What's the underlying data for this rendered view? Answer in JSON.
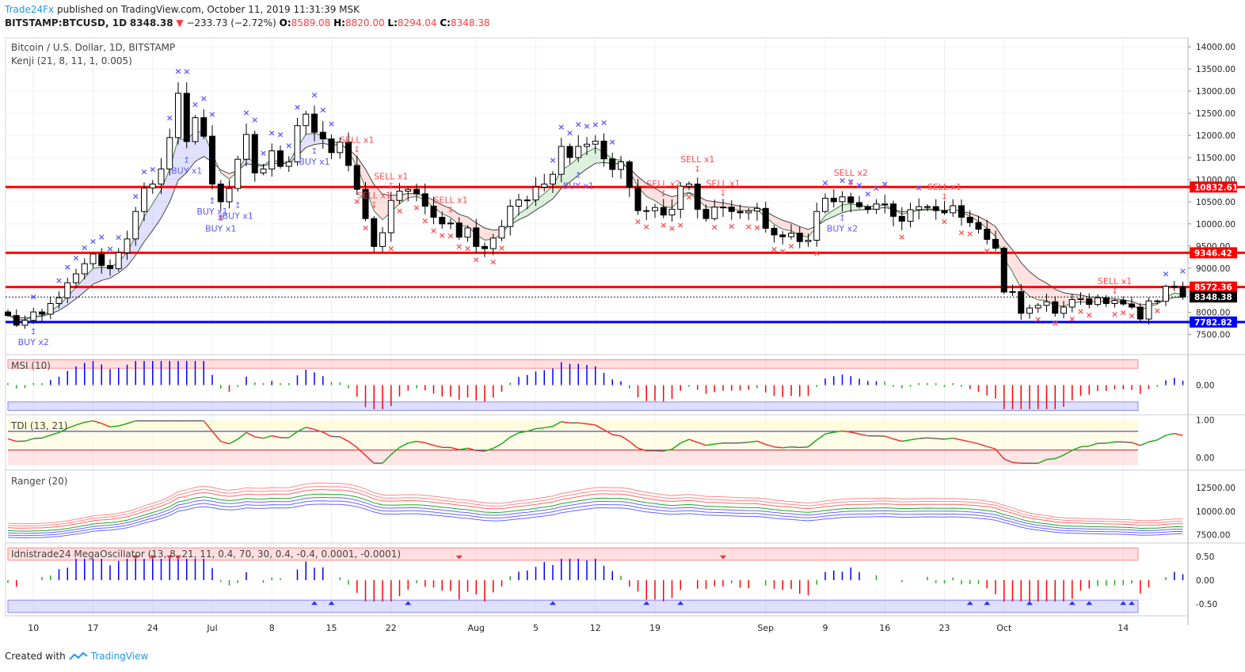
{
  "header": {
    "publisher": "Trade24Fx",
    "published_text": "published on TradingView.com, October 11, 2019 11:31:39 MSK",
    "symbol": "BITSTAMP:BTCUSD, 1D",
    "last": "8348.38",
    "change_arrow": "▼",
    "change": "−233.73 (−2.72%)",
    "o_label": "O:",
    "o_value": "8589.08",
    "h_label": "H:",
    "h_value": "8820.00",
    "l_label": "L:",
    "l_value": "8294.04",
    "c_label": "C:",
    "c_value": "8348.38"
  },
  "footer": {
    "created_with": "Created with",
    "brand": "TradingView"
  },
  "colors": {
    "up": "#ffffff",
    "down": "#000000",
    "red": "#ff0000",
    "blue": "#0000ff",
    "buy": "#5a5aff",
    "sell": "#ff4d4d",
    "grid": "#eef0f4"
  },
  "chart_data": [
    {
      "type": "candlestick",
      "title": "Bitcoin / U.S. Dollar, 1D, BITSTAMP",
      "indicator_label": "Kenji (21, 8, 11, 1, 0.005)",
      "ylim": [
        7100,
        14200
      ],
      "y_ticks": [
        "14000.00",
        "13500.00",
        "13000.00",
        "12500.00",
        "12000.00",
        "11500.00",
        "11000.00",
        "10500.00",
        "10000.00",
        "9500.00",
        "9000.00",
        "8500.00",
        "8000.00",
        "7500.00"
      ],
      "x_ticks": [
        {
          "i": 3,
          "label": "10"
        },
        {
          "i": 10,
          "label": "17"
        },
        {
          "i": 17,
          "label": "24"
        },
        {
          "i": 24,
          "label": "Jul"
        },
        {
          "i": 31,
          "label": "8"
        },
        {
          "i": 38,
          "label": "15"
        },
        {
          "i": 45,
          "label": "22"
        },
        {
          "i": 55,
          "label": "Aug"
        },
        {
          "i": 62,
          "label": "5"
        },
        {
          "i": 69,
          "label": "12"
        },
        {
          "i": 76,
          "label": "19"
        },
        {
          "i": 89,
          "label": "Sep"
        },
        {
          "i": 96,
          "label": "9"
        },
        {
          "i": 103,
          "label": "16"
        },
        {
          "i": 110,
          "label": "23"
        },
        {
          "i": 117,
          "label": "Oct"
        },
        {
          "i": 131,
          "label": "14"
        }
      ],
      "levels": [
        {
          "value": 10832.61,
          "label": "10832.61",
          "color": "red"
        },
        {
          "value": 9346.42,
          "label": "9346.42",
          "color": "red"
        },
        {
          "value": 8572.36,
          "label": "8572.36",
          "color": "red"
        },
        {
          "value": 8348.38,
          "label": "8348.38",
          "color": "black"
        },
        {
          "value": 7782.82,
          "label": "7782.82",
          "color": "blue"
        }
      ],
      "close": [
        7930,
        7710,
        7820,
        8010,
        7960,
        8200,
        8330,
        8670,
        8870,
        9100,
        9320,
        9060,
        8990,
        9350,
        9660,
        10280,
        10810,
        10900,
        11240,
        11950,
        12950,
        11860,
        12400,
        11980,
        10900,
        10500,
        10800,
        11460,
        12020,
        11150,
        11240,
        11650,
        11300,
        11400,
        12220,
        12480,
        12070,
        11920,
        11610,
        11850,
        11320,
        10780,
        10120,
        9490,
        9800,
        10530,
        10740,
        10780,
        10680,
        10400,
        10150,
        10000,
        10020,
        9700,
        9910,
        9490,
        9440,
        9680,
        9940,
        10400,
        10540,
        10540,
        10830,
        10900,
        11120,
        11750,
        11500,
        11750,
        11800,
        11870,
        11470,
        11230,
        11400,
        10830,
        10300,
        10300,
        10370,
        10200,
        10330,
        10850,
        10900,
        10330,
        10120,
        10380,
        10380,
        10280,
        10250,
        10290,
        10350,
        9900,
        9750,
        9710,
        9790,
        9600,
        9630,
        10280,
        10580,
        10500,
        10610,
        10480,
        10390,
        10330,
        10450,
        10450,
        10170,
        10060,
        10320,
        10390,
        10390,
        10300,
        10250,
        10410,
        10150,
        10030,
        9880,
        9650,
        9450,
        8460,
        8470,
        7980,
        8100,
        8160,
        8240,
        7980,
        8120,
        8290,
        8310,
        8180,
        8330,
        8200,
        8270,
        8190,
        8120,
        7850,
        8260,
        8250,
        8590,
        8580,
        8348.38
      ],
      "marker_labels": [
        {
          "i": 3,
          "text": "BUY x2",
          "color": "buy",
          "pos": "below"
        },
        {
          "i": 21,
          "text": "BUY x1",
          "color": "buy",
          "pos": "below"
        },
        {
          "i": 24,
          "text": "BUY x1",
          "color": "buy",
          "pos": "below"
        },
        {
          "i": 25,
          "text": "BUY x1",
          "color": "buy",
          "pos": "below"
        },
        {
          "i": 27,
          "text": "BUY x1",
          "color": "buy",
          "pos": "below"
        },
        {
          "i": 36,
          "text": "BUY x1",
          "color": "buy",
          "pos": "below"
        },
        {
          "i": 41,
          "text": "SELL x1",
          "color": "sell",
          "pos": "above"
        },
        {
          "i": 43,
          "text": "SELL x1",
          "color": "sell",
          "pos": "above"
        },
        {
          "i": 45,
          "text": "SELL x1",
          "color": "sell",
          "pos": "above"
        },
        {
          "i": 52,
          "text": "SELL x1",
          "color": "sell",
          "pos": "above"
        },
        {
          "i": 67,
          "text": "BUY x1",
          "color": "buy",
          "pos": "below"
        },
        {
          "i": 77,
          "text": "SELL x2",
          "color": "sell",
          "pos": "above"
        },
        {
          "i": 81,
          "text": "SELL x1",
          "color": "sell",
          "pos": "above"
        },
        {
          "i": 84,
          "text": "SELL x1",
          "color": "sell",
          "pos": "above"
        },
        {
          "i": 98,
          "text": "BUY x2",
          "color": "buy",
          "pos": "below"
        },
        {
          "i": 99,
          "text": "SELL x2",
          "color": "sell",
          "pos": "above"
        },
        {
          "i": 110,
          "text": "SELL x1",
          "color": "sell",
          "pos": "above"
        },
        {
          "i": 130,
          "text": "SELL x1",
          "color": "sell",
          "pos": "above"
        }
      ]
    },
    {
      "type": "bar",
      "title": "MSI (10)",
      "y_ticks": [
        "0.00"
      ],
      "ylim": [
        -1.2,
        1.2
      ]
    },
    {
      "type": "line",
      "title": "TDI (13, 21)",
      "y_ticks": [
        "1.00",
        "0.00"
      ],
      "ylim": [
        -0.25,
        1.1
      ]
    },
    {
      "type": "line",
      "title": "Ranger (20)",
      "y_ticks": [
        "12500.00",
        "10000.00",
        "7500.00"
      ],
      "ylim": [
        6700,
        14200
      ]
    },
    {
      "type": "bar",
      "title": "Idnistrade24 MegaOscillator (13, 8, 21, 11, 0.4, 70, 30, 0.4, -0.4, 0.0001, -0.0001)",
      "y_ticks": [
        "0.50",
        "0.00",
        "-0.50"
      ],
      "ylim": [
        -0.75,
        0.75
      ]
    }
  ]
}
